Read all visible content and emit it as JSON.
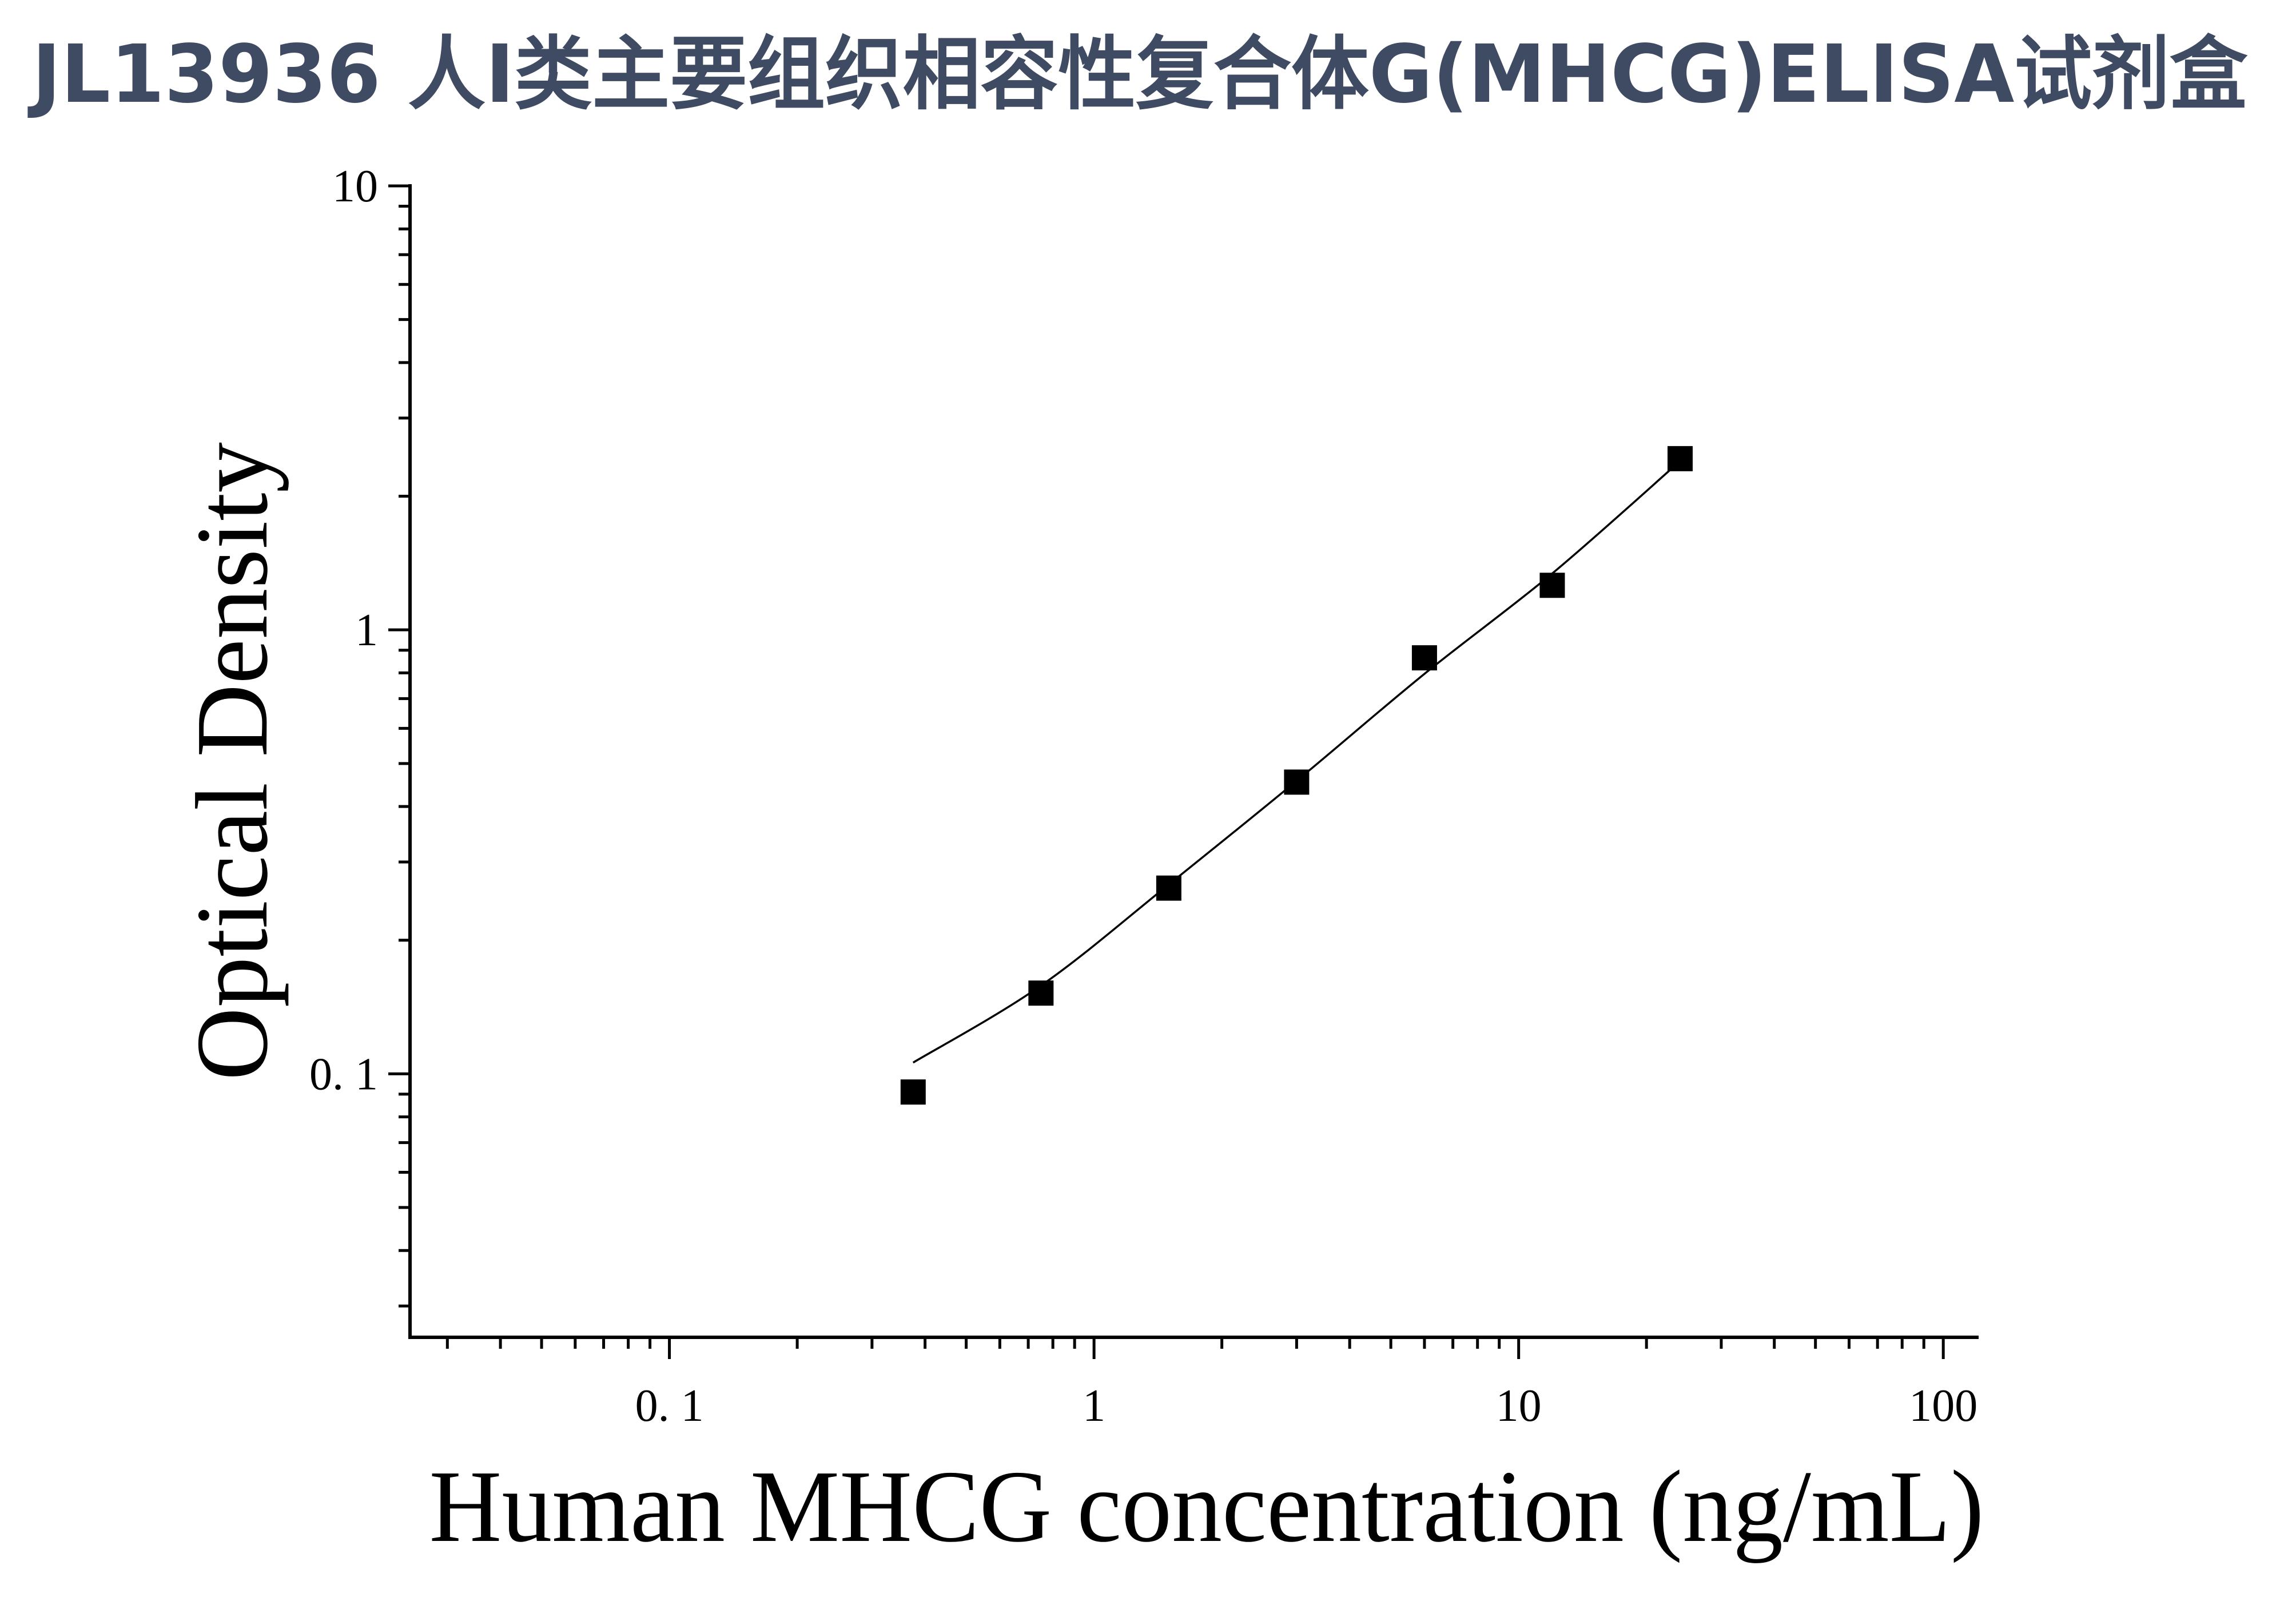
{
  "colors": {
    "title": "#3f4a63",
    "axis": "#000000",
    "marker": "#000000",
    "line": "#000000",
    "background": "#ffffff"
  },
  "chart_data": {
    "type": "scatter",
    "title": "JL13936 人Ⅰ类主要组织相容性复合体G(MHCG)ELISA试剂盒",
    "xlabel": "Human MHCG concentration (ng/mL)",
    "ylabel": "Optical Density",
    "xscale": "log",
    "yscale": "log",
    "xlim": [
      0.0245,
      120
    ],
    "ylim": [
      0.0255,
      10
    ],
    "xticks": [
      0.1,
      1,
      10,
      100
    ],
    "xtick_labels": [
      "0. 1",
      "1",
      "10",
      "100"
    ],
    "yticks": [
      0.1,
      1,
      10
    ],
    "ytick_labels": [
      "0. 1",
      "1",
      "10"
    ],
    "minor_ticks": true,
    "grid": false,
    "series": [
      {
        "type": "line",
        "x": [
          0.375,
          0.75,
          1.5,
          3,
          6,
          12,
          24
        ],
        "y": [
          0.106,
          0.158,
          0.267,
          0.457,
          0.796,
          1.34,
          2.4
        ]
      },
      {
        "type": "scatter",
        "marker": "square",
        "x": [
          0.375,
          0.75,
          1.5,
          3,
          6,
          12,
          24
        ],
        "y": [
          0.091,
          0.152,
          0.262,
          0.454,
          0.865,
          1.26,
          2.43
        ]
      }
    ]
  }
}
